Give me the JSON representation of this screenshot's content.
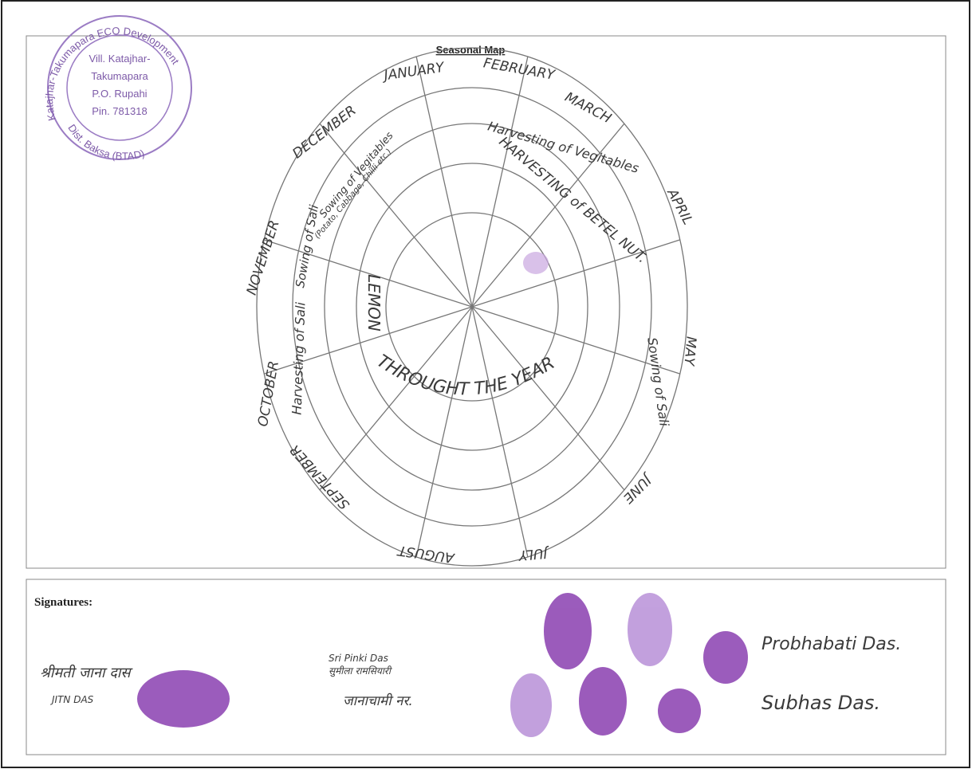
{
  "stamp": {
    "ring_top": "Katajhar-Takumapara ECO Development",
    "lines": [
      "Vill. Katajhar-",
      "Takumapara",
      "P.O. Rupahi",
      "Pin. 781318"
    ],
    "ring_bottom": "Dist. Baksa (BTAD)"
  },
  "title": "Seasonal Map",
  "months": [
    "JANUARY",
    "FEBRUARY",
    "MARCH",
    "APRIL",
    "MAY",
    "JUNE",
    "JULY",
    "AUGUST",
    "SEPTEMBER",
    "OCTOBER",
    "NOVEMBER",
    "DECEMBER"
  ],
  "activities": {
    "harvest_vegetables": "Harvesting of Vegitables",
    "harvest_betel": "HARVESTING of BETEL NUT.",
    "sow_vegetables": "Sowing of Vegitables",
    "sow_vegetables_note": "(Potato, Cabbage, Chilli etc.)",
    "sow_sali_left": "Sowing of Sali",
    "harvest_sali": "Harvesting of Sali",
    "sow_sali_right": "Sowing of Sali",
    "lemon": "LEMON",
    "year_round": "THROUGHT THE YEAR"
  },
  "signatures": {
    "label": "Signatures:",
    "names": [
      "श्रीमती जाना दास",
      "JITN DAS",
      "Sri Pinki Das",
      "सुमीला रामसियारी",
      "जानाचामी नर.",
      "Probhabati Das.",
      "Subhas Das."
    ]
  }
}
